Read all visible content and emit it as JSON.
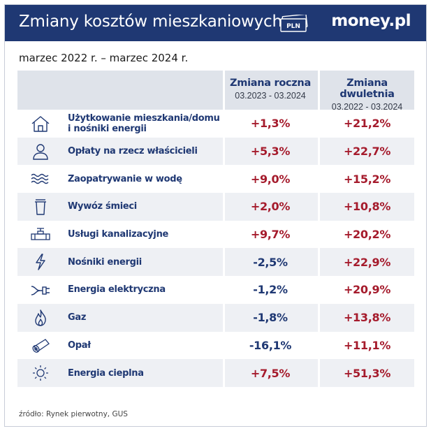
{
  "header": {
    "title": "Zmiany kosztów mieszkaniowych",
    "pln_badge": "PLN",
    "brand": "money.pl"
  },
  "subtitle": "marzec 2022 r. – marzec 2024 r.",
  "columns": {
    "annual": {
      "title": "Zmiana roczna",
      "period": "03.2023 - 03.2024"
    },
    "biennial": {
      "title": "Zmiana dwuletnia",
      "period": "03.2022 - 03.2024"
    }
  },
  "rows": [
    {
      "icon": "house-icon",
      "label_line1": "Użytkowanie mieszkania/domu",
      "label_line2": "i nośniki energii",
      "annual": "+1,3%",
      "biennial": "+21,2%"
    },
    {
      "icon": "person-icon",
      "label_line1": "Opłaty na rzecz właścicieli",
      "label_line2": "",
      "annual": "+5,3%",
      "biennial": "+22,7%"
    },
    {
      "icon": "water-waves-icon",
      "label_line1": "Zaopatrywanie w wodę",
      "label_line2": "",
      "annual": "+9,0%",
      "biennial": "+15,2%"
    },
    {
      "icon": "trash-bin-icon",
      "label_line1": "Wywóz śmieci",
      "label_line2": "",
      "annual": "+2,0%",
      "biennial": "+10,8%"
    },
    {
      "icon": "pipe-valve-icon",
      "label_line1": "Usługi kanalizacyjne",
      "label_line2": "",
      "annual": "+9,7%",
      "biennial": "+20,2%"
    },
    {
      "icon": "lightning-icon",
      "label_line1": "Nośniki energii",
      "label_line2": "",
      "annual": "-2,5%",
      "biennial": "+22,9%"
    },
    {
      "icon": "plug-icon",
      "label_line1": "Energia elektryczna",
      "label_line2": "",
      "annual": "-1,2%",
      "biennial": "+20,9%"
    },
    {
      "icon": "flame-icon",
      "label_line1": "Gaz",
      "label_line2": "",
      "annual": "-1,8%",
      "biennial": "+13,8%"
    },
    {
      "icon": "log-icon",
      "label_line1": "Opał",
      "label_line2": "",
      "annual": "-16,1%",
      "biennial": "+11,1%"
    },
    {
      "icon": "sun-icon",
      "label_line1": "Energia cieplna",
      "label_line2": "",
      "annual": "+7,5%",
      "biennial": "+51,3%"
    }
  ],
  "colors": {
    "header_bg": "#1f3873",
    "positive": "#a51b2c",
    "negative": "#1f3873",
    "row_alt": "#eef0f4",
    "header_row_bg": "#dfe3ea"
  },
  "source": "źródło: Rynek pierwotny, GUS"
}
